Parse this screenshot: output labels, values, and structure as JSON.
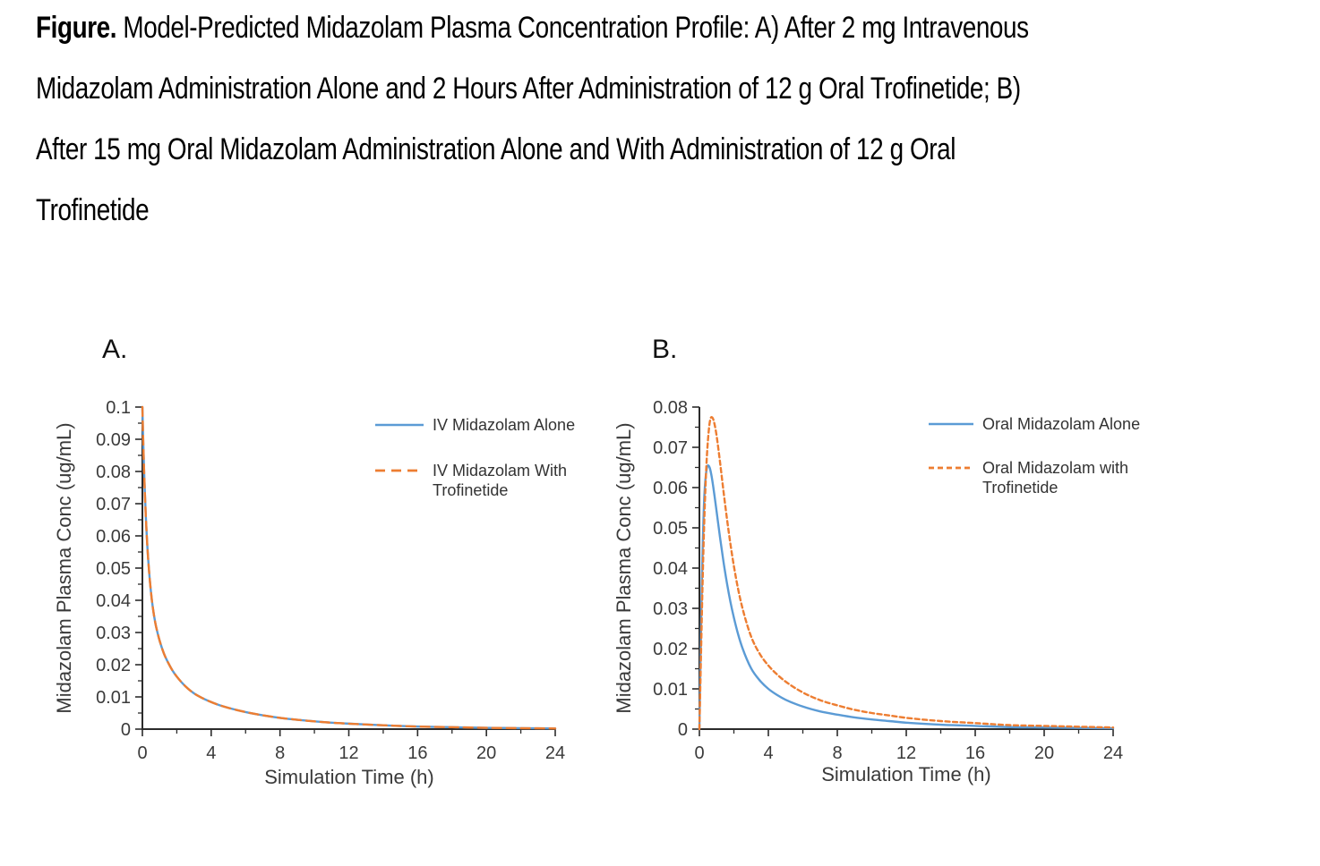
{
  "title": {
    "prefix": "Figure.",
    "line1_rest": " Model-Predicted Midazolam Plasma Concentration Profile: A) After 2 mg Intravenous",
    "line2": "Midazolam Administration Alone and 2 Hours After Administration of 12 g Oral Trofinetide; B)",
    "line3": "After 15 mg Oral Midazolam Administration Alone and With Administration of 12 g Oral",
    "line4": "Trofinetide"
  },
  "colors": {
    "series_blue": "#5B9BD5",
    "series_orange": "#ED7D31",
    "axis": "#2b2b2b",
    "label_text": "#3a3a3a",
    "title_text": "#000000"
  },
  "chart_data": [
    {
      "id": "A",
      "panel_label": "A.",
      "type": "line",
      "xlabel": "Simulation Time (h)",
      "ylabel": "Midazolam Plasma Conc (ug/mL)",
      "xlim": [
        0,
        24
      ],
      "ylim": [
        0,
        0.1
      ],
      "x_ticks": [
        0,
        4,
        8,
        12,
        16,
        20,
        24
      ],
      "x_minor_step": 2,
      "y_tick_labels": [
        "0",
        "0.01",
        "0.02",
        "0.03",
        "0.04",
        "0.05",
        "0.06",
        "0.07",
        "0.08",
        "0.09",
        "0.1"
      ],
      "y_minor_step": 0.005,
      "grid": false,
      "legend_position": "upper right inside",
      "legend": [
        {
          "name": "IV Midazolam Alone",
          "color": "series_blue",
          "style": "solid",
          "lines": [
            "IV Midazolam Alone"
          ]
        },
        {
          "name": "IV Midazolam With Trofinetide",
          "color": "series_orange",
          "style": "dashed",
          "lines": [
            "IV Midazolam With",
            "Trofinetide"
          ]
        }
      ],
      "x": [
        0,
        0.05,
        0.1,
        0.15,
        0.2,
        0.25,
        0.3,
        0.4,
        0.5,
        0.6,
        0.75,
        0.9,
        1,
        1.25,
        1.5,
        1.75,
        2,
        2.5,
        3,
        3.5,
        4,
        4.5,
        5,
        6,
        7,
        8,
        9,
        10,
        11,
        12,
        14,
        16,
        18,
        20,
        22,
        24
      ],
      "series": [
        {
          "name": "IV Midazolam Alone",
          "color": "series_blue",
          "style": "solid",
          "values": [
            0.1,
            0.089,
            0.08,
            0.0725,
            0.066,
            0.0605,
            0.0557,
            0.0483,
            0.0425,
            0.038,
            0.033,
            0.0295,
            0.0275,
            0.0235,
            0.0206,
            0.0182,
            0.0163,
            0.0133,
            0.0111,
            0.0096,
            0.0084,
            0.0074,
            0.0066,
            0.0053,
            0.0043,
            0.0035,
            0.0029,
            0.0024,
            0.002,
            0.0017,
            0.0012,
            0.0008,
            0.0006,
            0.0004,
            0.0003,
            0.0002
          ]
        },
        {
          "name": "IV Midazolam With Trofinetide",
          "color": "series_orange",
          "style": "dashed",
          "values": [
            0.1,
            0.089,
            0.08,
            0.0725,
            0.066,
            0.0605,
            0.0557,
            0.0483,
            0.0425,
            0.038,
            0.033,
            0.0295,
            0.0275,
            0.0235,
            0.0206,
            0.0182,
            0.0163,
            0.0133,
            0.0111,
            0.0096,
            0.0084,
            0.0074,
            0.0066,
            0.0053,
            0.0043,
            0.0035,
            0.0029,
            0.0024,
            0.002,
            0.0017,
            0.0012,
            0.0008,
            0.0006,
            0.0004,
            0.0003,
            0.0002
          ]
        }
      ]
    },
    {
      "id": "B",
      "panel_label": "B.",
      "type": "line",
      "xlabel": "Simulation Time (h)",
      "ylabel": "Midazolam Plasma Conc (ug/mL)",
      "xlim": [
        0,
        24
      ],
      "ylim": [
        0,
        0.08
      ],
      "x_ticks": [
        0,
        4,
        8,
        12,
        16,
        20,
        24
      ],
      "x_minor_step": 2,
      "y_tick_labels": [
        "0",
        "0.01",
        "0.02",
        "0.03",
        "0.04",
        "0.05",
        "0.06",
        "0.07",
        "0.08"
      ],
      "y_minor_step": 0.005,
      "grid": false,
      "legend_position": "upper right inside",
      "legend": [
        {
          "name": "Oral Midazolam Alone",
          "color": "series_blue",
          "style": "solid",
          "lines": [
            "Oral Midazolam Alone"
          ]
        },
        {
          "name": "Oral Midazolam with Trofinetide",
          "color": "series_orange",
          "style": "dashed",
          "lines": [
            "Oral Midazolam with",
            "Trofinetide"
          ]
        }
      ],
      "x": [
        0,
        0.05,
        0.1,
        0.15,
        0.2,
        0.25,
        0.3,
        0.4,
        0.5,
        0.6,
        0.7,
        0.8,
        0.9,
        1,
        1.2,
        1.4,
        1.6,
        1.8,
        2,
        2.25,
        2.5,
        3,
        3.5,
        4,
        4.5,
        5,
        6,
        7,
        8,
        9,
        10,
        11,
        12,
        14,
        16,
        18,
        20,
        22,
        24
      ],
      "series": [
        {
          "name": "Oral Midazolam Alone",
          "color": "series_blue",
          "style": "solid",
          "values": [
            0,
            0.013,
            0.026,
            0.038,
            0.047,
            0.054,
            0.059,
            0.064,
            0.0655,
            0.0649,
            0.063,
            0.0603,
            0.0572,
            0.054,
            0.0475,
            0.0415,
            0.0362,
            0.0316,
            0.0277,
            0.0235,
            0.0201,
            0.0151,
            0.0121,
            0.01,
            0.0085,
            0.0073,
            0.0056,
            0.0044,
            0.0036,
            0.0029,
            0.0024,
            0.002,
            0.0016,
            0.0011,
            0.0008,
            0.0005,
            0.0004,
            0.0003,
            0.0002
          ]
        },
        {
          "name": "Oral Midazolam with Trofinetide",
          "color": "series_orange",
          "style": "dashed",
          "values": [
            0,
            0.01,
            0.02,
            0.03,
            0.039,
            0.047,
            0.054,
            0.065,
            0.072,
            0.0762,
            0.0775,
            0.077,
            0.0753,
            0.0728,
            0.0662,
            0.059,
            0.0522,
            0.046,
            0.0405,
            0.0347,
            0.03,
            0.023,
            0.0187,
            0.0158,
            0.0136,
            0.0118,
            0.0091,
            0.0072,
            0.0059,
            0.0048,
            0.004,
            0.0034,
            0.0028,
            0.002,
            0.0015,
            0.001,
            0.0008,
            0.0006,
            0.0004
          ]
        }
      ]
    }
  ]
}
